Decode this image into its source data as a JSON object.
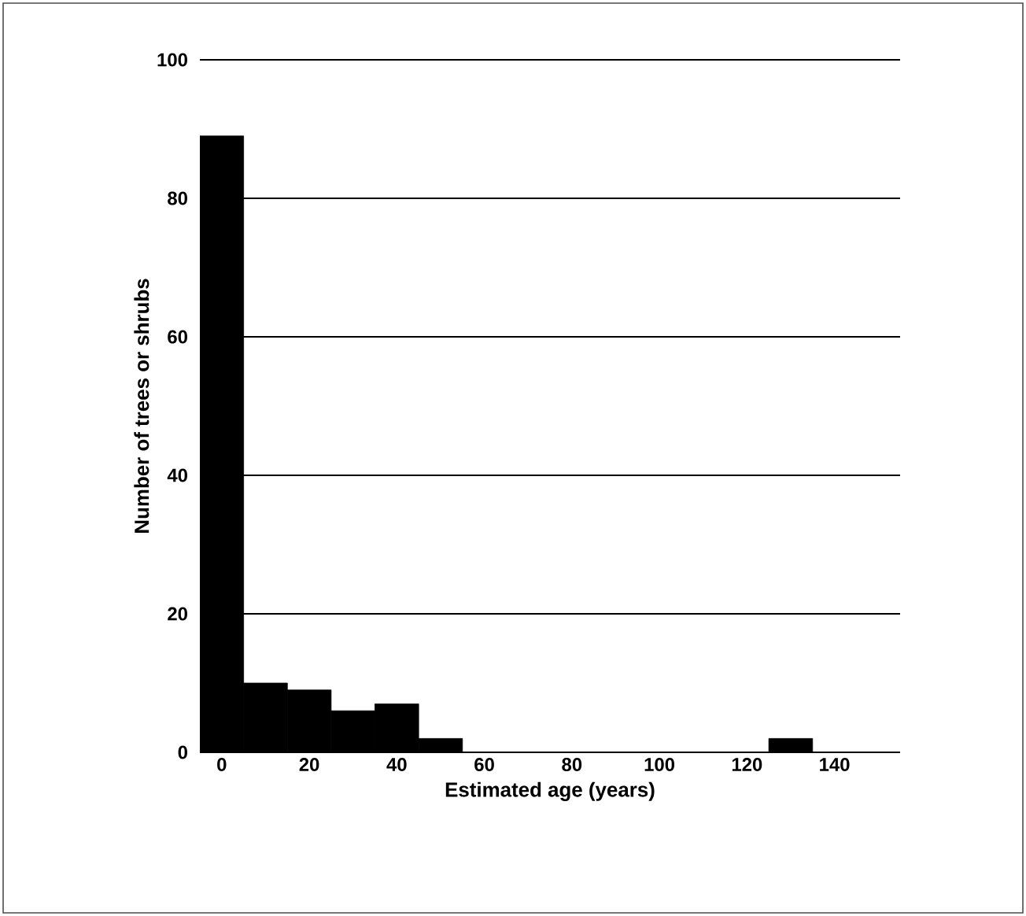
{
  "chart_data": {
    "type": "bar",
    "xlabel": "Estimated age (years)",
    "ylabel": "Number of trees or shrubs",
    "categories": [
      "0",
      null,
      "20",
      null,
      "40",
      null,
      "60",
      null,
      "80",
      null,
      "100",
      null,
      "120",
      null,
      "140",
      null
    ],
    "values": [
      89,
      10,
      9,
      6,
      7,
      2,
      0,
      0,
      0,
      0,
      0,
      0,
      0,
      2,
      0,
      0
    ],
    "color": "#000000",
    "ylim": [
      0,
      100
    ],
    "yticks": [
      0,
      20,
      40,
      60,
      80,
      100
    ],
    "grid": "y"
  }
}
